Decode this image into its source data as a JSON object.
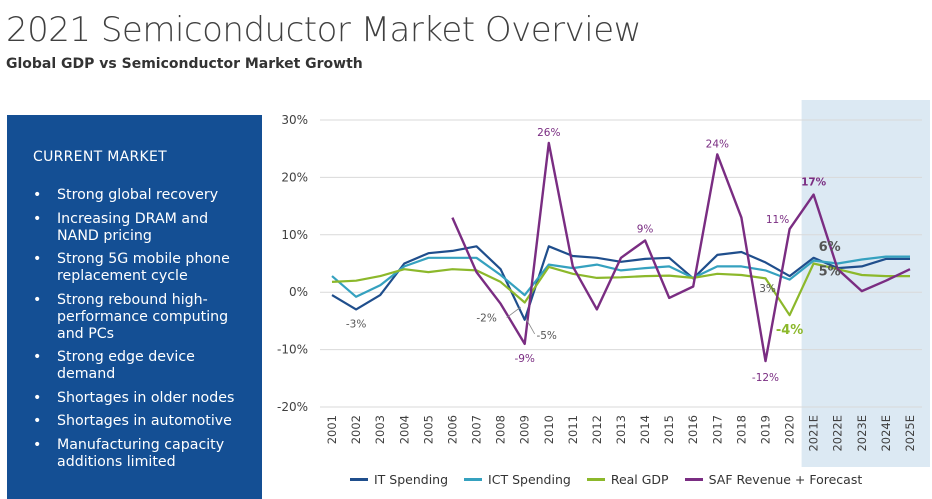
{
  "header": {
    "title": "2021 Semiconductor Market Overview",
    "subtitle": "Global GDP vs Semiconductor Market Growth"
  },
  "panel": {
    "heading": "CURRENT MARKET",
    "bullet_glyph": "•",
    "items": [
      "Strong global recovery",
      "Increasing DRAM and NAND pricing",
      "Strong 5G mobile phone replacement cycle",
      "Strong rebound high-performance computing and PCs",
      "Strong edge device demand",
      "Shortages in older nodes",
      "Shortages in automotive",
      "Manufacturing capacity additions limited"
    ]
  },
  "chart_data": {
    "type": "line",
    "title": "Global GDP vs Semiconductor Market Growth",
    "xlabel": "",
    "ylabel": "",
    "ylim": [
      -20,
      30
    ],
    "yticks": [
      30,
      20,
      10,
      0,
      -10,
      -20
    ],
    "ytick_labels": [
      "30%",
      "20%",
      "10%",
      "0%",
      "-10%",
      "-20%"
    ],
    "categories": [
      "2001",
      "2002",
      "2003",
      "2004",
      "2005",
      "2006",
      "2007",
      "2008",
      "2009",
      "2010",
      "2011",
      "2012",
      "2013",
      "2014",
      "2015",
      "2016",
      "2017",
      "2018",
      "2019",
      "2020",
      "2021E",
      "2022E",
      "2023E",
      "2024E",
      "2025E"
    ],
    "forecast_start": "2021E",
    "forecast_color": "#dce9f3",
    "series": [
      {
        "name": "IT Spending",
        "color": "#1f4e8c",
        "values": [
          -0.5,
          -3,
          -0.5,
          5,
          6.8,
          7.2,
          8,
          4,
          -4.8,
          8,
          6.3,
          6,
          5.3,
          5.8,
          6,
          2.4,
          6.5,
          7,
          5.2,
          2.8,
          6,
          4.2,
          4.5,
          5.8,
          5.8
        ]
      },
      {
        "name": "ICT Spending",
        "color": "#35a1bf",
        "values": [
          2.8,
          -0.8,
          1.2,
          4.5,
          6,
          6,
          6,
          3,
          -0.5,
          4.8,
          4.2,
          4.8,
          3.8,
          4.2,
          4.5,
          2.5,
          4.5,
          4.5,
          3.8,
          2.2,
          5.5,
          5,
          5.7,
          6.2,
          6.2
        ]
      },
      {
        "name": "Real GDP",
        "color": "#8cb82b",
        "values": [
          1.8,
          2,
          2.8,
          4,
          3.5,
          4,
          3.8,
          1.8,
          -1.8,
          4.4,
          3.2,
          2.5,
          2.6,
          2.8,
          2.9,
          2.5,
          3.2,
          3,
          2.4,
          -4,
          5,
          4,
          3,
          2.8,
          2.8
        ]
      },
      {
        "name": "SAF Revenue + Forecast",
        "color": "#7a2d82",
        "values": [
          null,
          null,
          null,
          null,
          null,
          13,
          3.5,
          -2,
          -9,
          26,
          4.5,
          -3,
          6,
          9,
          -1,
          1,
          24,
          13,
          -12,
          11,
          17,
          4,
          0.2,
          2,
          4
        ]
      }
    ],
    "annotations": [
      {
        "text": "26%",
        "x": "2010",
        "y": 26,
        "color": "#7a2d82"
      },
      {
        "text": "24%",
        "x": "2017",
        "y": 24,
        "color": "#7a2d82"
      },
      {
        "text": "9%",
        "x": "2014",
        "y": 9,
        "color": "#7a2d82"
      },
      {
        "text": "11%",
        "x": "2020",
        "y": 11,
        "color": "#7a2d82"
      },
      {
        "text": "17%",
        "x": "2021E",
        "y": 17,
        "color": "#7a2d82",
        "bold": true
      },
      {
        "text": "-9%",
        "x": "2009",
        "y": -9,
        "color": "#7a2d82"
      },
      {
        "text": "-12%",
        "x": "2019",
        "y": -12,
        "color": "#7a2d82"
      },
      {
        "text": "-3%",
        "x": "2002",
        "y": -3,
        "color": "#555555"
      },
      {
        "text": "-2%",
        "x": "2008",
        "y": -2,
        "color": "#555555"
      },
      {
        "text": "-5%",
        "x": "2009",
        "y": -5,
        "color": "#555555"
      },
      {
        "text": "3%",
        "x": "2020",
        "y": 3,
        "color": "#555555"
      },
      {
        "text": "-4%",
        "x": "2020",
        "y": -4,
        "color": "#8cb82b",
        "bold": true
      },
      {
        "text": "6%",
        "x": "2021E",
        "y": 6,
        "color": "#555555",
        "bold": true
      },
      {
        "text": "5%",
        "x": "2021E",
        "y": 5,
        "color": "#555555",
        "bold": true
      }
    ],
    "grid": true,
    "legend": "bottom"
  }
}
